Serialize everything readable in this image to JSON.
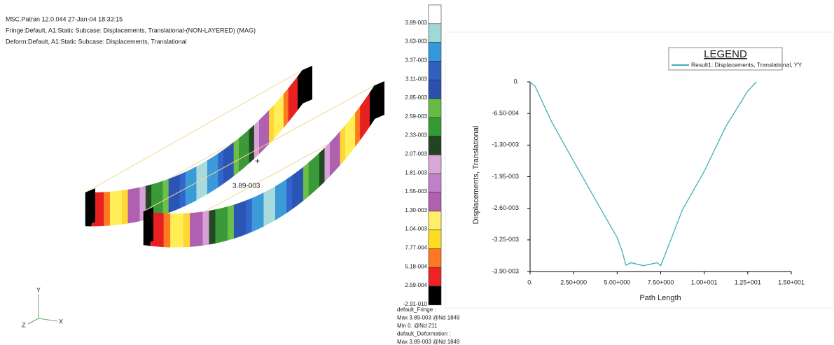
{
  "header": {
    "lines": [
      "MSC.Patran 12.0.044 27-Jan-04 18:33:15",
      "Fringe:Default, A1:Static Subcase: Displacements, Translational-(NON-LAYERED) (MAG)",
      "Deform:Default, A1:Static Subcase: Displacements, Translational"
    ]
  },
  "viewport": {
    "marker_label": "3.89-003",
    "triad": {
      "x": "X",
      "y": "Y",
      "z": "Z"
    }
  },
  "colorbar": {
    "labels": [
      "3.89-003",
      "3.63-003",
      "3.37-003",
      "3.11-003",
      "2.85-003",
      "2.59-003",
      "2.33-003",
      "2.07-003",
      "1.81-003",
      "1.55-003",
      "1.30-003",
      "1.04-003",
      "7.77-004",
      "5.18-004",
      "2.59-004",
      "-2.91-010"
    ],
    "info": [
      "default_Fringe :",
      "Max 3.89-003 @Nd 1849",
      "Min 0. @Nd 211",
      "default_Deformation :",
      "Max 3.89-003 @Nd 1849"
    ]
  },
  "chart_data": {
    "type": "line",
    "legend_title": "LEGEND",
    "x_label": "Path Length",
    "y_label": "Displacements, Translational",
    "x": [
      0,
      0.3,
      1.25,
      2.5,
      3.75,
      5,
      5.3,
      5.5,
      5.8,
      6.5,
      7.3,
      7.5,
      7.7,
      8.75,
      10,
      11.25,
      12.5,
      13
    ],
    "series": [
      {
        "name": "Result1: Displacements, Translational, YY",
        "color": "#3fb0b8",
        "values": [
          0,
          -0.0001,
          -0.00083,
          -0.00163,
          -0.00242,
          -0.0032,
          -0.0035,
          -0.00377,
          -0.00372,
          -0.00378,
          -0.00372,
          -0.00378,
          -0.0036,
          -0.00263,
          -0.00184,
          -0.00091,
          -0.00019,
          0
        ]
      }
    ],
    "xlim": [
      0,
      15
    ],
    "ylim": [
      -0.0039,
      0
    ],
    "xticks": [
      {
        "value": 0,
        "label": "0."
      },
      {
        "value": 2.5,
        "label": "2.50+000"
      },
      {
        "value": 5,
        "label": "5.00+000"
      },
      {
        "value": 7.5,
        "label": "7.50+000"
      },
      {
        "value": 10,
        "label": "1.00+001"
      },
      {
        "value": 12.5,
        "label": "1.25+001"
      },
      {
        "value": 15,
        "label": "1.50+001"
      }
    ],
    "yticks": [
      {
        "value": 0,
        "label": "0."
      },
      {
        "value": -0.00065,
        "label": "-6.50-004"
      },
      {
        "value": -0.0013,
        "label": "-1.30-003"
      },
      {
        "value": -0.00195,
        "label": "-1.95-003"
      },
      {
        "value": -0.0026,
        "label": "-2.60-003"
      },
      {
        "value": -0.00325,
        "label": "-3.25-003"
      },
      {
        "value": -0.0039,
        "label": "-3.90-003"
      }
    ]
  }
}
